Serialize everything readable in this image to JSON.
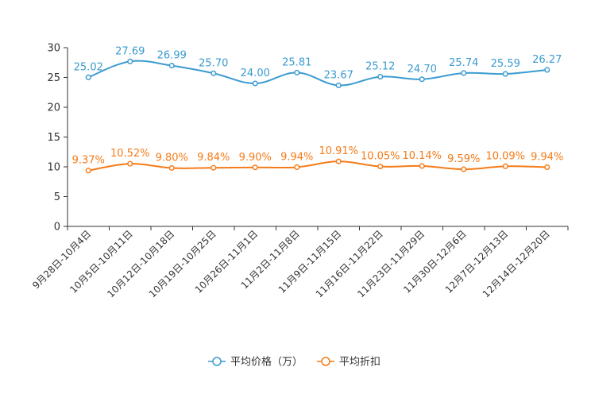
{
  "chart_data": {
    "type": "line",
    "categories": [
      "9月28日-10月4日",
      "10月5日-10月11日",
      "10月12日-10月18日",
      "10月19日-10月25日",
      "10月26日-11月1日",
      "11月2日-11月8日",
      "11月9日-11月15日",
      "11月16日-11月22日",
      "11月23日-11月29日",
      "11月30日-12月6日",
      "12月7日-12月13日",
      "12月14日-12月20日"
    ],
    "ylim": [
      0,
      30
    ],
    "yticks": [
      0,
      5,
      10,
      15,
      20,
      25,
      30
    ],
    "series": [
      {
        "name": "平均价格（万）",
        "color": "#3a9bd0",
        "values": [
          25.02,
          27.69,
          26.99,
          25.7,
          24.0,
          25.81,
          23.67,
          25.12,
          24.7,
          25.74,
          25.59,
          26.27
        ],
        "labels": [
          "25.02",
          "27.69",
          "26.99",
          "25.70",
          "24.00",
          "25.81",
          "23.67",
          "25.12",
          "24.70",
          "25.74",
          "25.59",
          "26.27"
        ]
      },
      {
        "name": "平均折扣",
        "color": "#f57b18",
        "values": [
          9.37,
          10.52,
          9.8,
          9.84,
          9.9,
          9.94,
          10.91,
          10.05,
          10.14,
          9.59,
          10.09,
          9.94
        ],
        "labels": [
          "9.37%",
          "10.52%",
          "9.80%",
          "9.84%",
          "9.90%",
          "9.94%",
          "10.91%",
          "10.05%",
          "10.14%",
          "9.59%",
          "10.09%",
          "9.94%"
        ]
      }
    ]
  }
}
